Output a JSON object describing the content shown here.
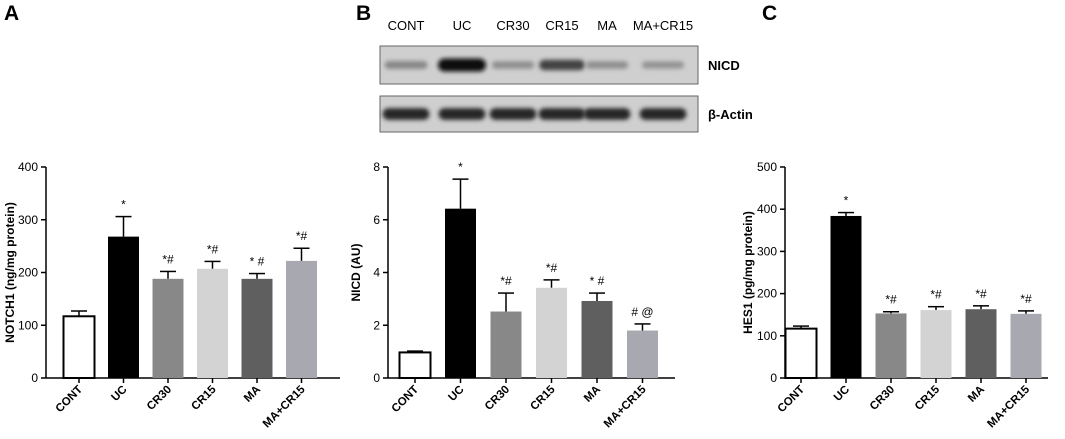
{
  "panels": {
    "a": "A",
    "b": "B",
    "c": "C"
  },
  "blot": {
    "lanes": [
      "CONT",
      "UC",
      "CR30",
      "CR15",
      "MA",
      "MA+CR15"
    ],
    "rows": [
      {
        "name": "NICD",
        "intensities": [
          0.35,
          1.0,
          0.3,
          0.7,
          0.3,
          0.28
        ]
      },
      {
        "name": "β-Actin",
        "intensities": [
          0.85,
          0.85,
          0.85,
          0.85,
          0.85,
          0.85
        ]
      }
    ]
  },
  "chart_data": [
    {
      "type": "bar",
      "panel": "A",
      "categories": [
        "CONT",
        "UC",
        "CR30",
        "CR15",
        "MA",
        "MA+CR15"
      ],
      "values": [
        117,
        268,
        188,
        207,
        188,
        222
      ],
      "errors": [
        10,
        38,
        14,
        14,
        10,
        24
      ],
      "colors": [
        "#ffffff",
        "#000000",
        "#888888",
        "#d3d3d3",
        "#5f5f5f",
        "#a8a8b0"
      ],
      "annotations": [
        "",
        "*",
        "*#",
        "*#",
        "* #",
        "*#"
      ],
      "ylabel": "NOTCH1 (ng/mg protein)",
      "ylim": [
        0,
        400
      ],
      "yticks": [
        "0",
        "100",
        "200",
        "300",
        "400"
      ],
      "grid": false
    },
    {
      "type": "bar",
      "panel": "B",
      "categories": [
        "CONT",
        "UC",
        "CR30",
        "CR15",
        "MA",
        "MA+CR15"
      ],
      "values": [
        0.97,
        6.42,
        2.52,
        3.42,
        2.92,
        1.8
      ],
      "errors": [
        0.05,
        1.12,
        0.7,
        0.3,
        0.3,
        0.25
      ],
      "colors": [
        "#ffffff",
        "#000000",
        "#888888",
        "#d3d3d3",
        "#5f5f5f",
        "#a8a8b0"
      ],
      "annotations": [
        "",
        "*",
        "*#",
        "*#",
        "* #",
        "# @"
      ],
      "ylabel": "NICD (AU)",
      "ylim": [
        0,
        8
      ],
      "yticks": [
        "0",
        "2",
        "4",
        "6",
        "8"
      ],
      "grid": false
    },
    {
      "type": "bar",
      "panel": "C",
      "categories": [
        "CONT",
        "UC",
        "CR30",
        "CR15",
        "MA",
        "MA+CR15"
      ],
      "values": [
        117,
        384,
        153,
        161,
        163,
        152
      ],
      "errors": [
        6,
        8,
        4,
        8,
        8,
        7
      ],
      "colors": [
        "#ffffff",
        "#000000",
        "#888888",
        "#d3d3d3",
        "#5f5f5f",
        "#a8a8b0"
      ],
      "annotations": [
        "",
        "*",
        "*#",
        "*#",
        "*#",
        "*#"
      ],
      "ylabel": "HES1 (pg/mg protein)",
      "ylim": [
        0,
        500
      ],
      "yticks": [
        "0",
        "100",
        "200",
        "300",
        "400",
        "500"
      ],
      "grid": false
    }
  ]
}
